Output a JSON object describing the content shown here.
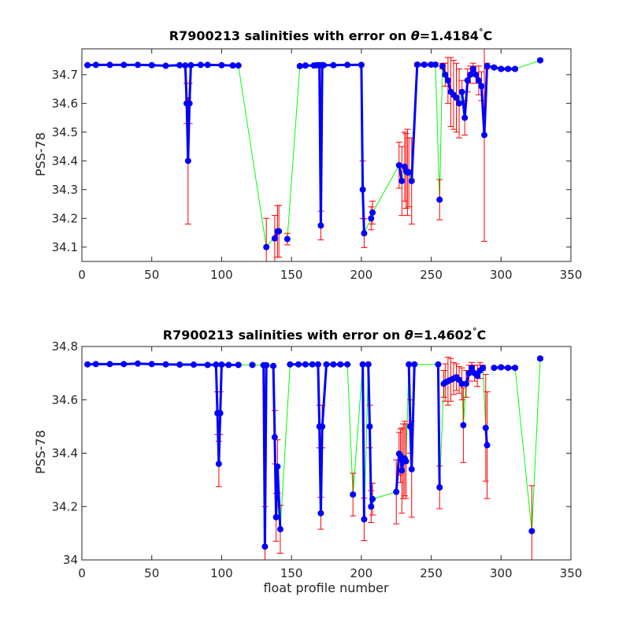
{
  "colors": {
    "series_line": "#0000ff",
    "series_marker": "#0000ff",
    "error_bar": "#ff0000",
    "connector": "#00ff00",
    "axes": "#262626"
  },
  "chart_data": [
    {
      "type": "line",
      "title_prefix": "R7900213 salinities with error on ",
      "title_symbol": "θ",
      "title_value": "=1.4184",
      "title_degree": "°",
      "title_unit": "C",
      "xlabel": "",
      "ylabel": "PSS-78",
      "xlim": [
        0,
        350
      ],
      "ylim": [
        34.05,
        34.79
      ],
      "xticks": [
        0,
        50,
        100,
        150,
        200,
        250,
        300,
        350
      ],
      "yticks": [
        34.1,
        34.2,
        34.3,
        34.4,
        34.5,
        34.6,
        34.7
      ],
      "ytick_labels": [
        "34.1",
        "34.2",
        "34.3",
        "34.4",
        "34.5",
        "34.6",
        "34.7"
      ],
      "grid": false,
      "gaps": [
        [
          112,
          132
        ],
        [
          132,
          141
        ],
        [
          147,
          156
        ],
        [
          202,
          207
        ],
        [
          208,
          227
        ],
        [
          229,
          231
        ],
        [
          234,
          236
        ],
        [
          253,
          256
        ],
        [
          256,
          258
        ],
        [
          264,
          266
        ],
        [
          270,
          272
        ],
        [
          310,
          328
        ]
      ],
      "series": [
        {
          "x": [
            4,
            10,
            20,
            30,
            40,
            50,
            60,
            70,
            74,
            75,
            76,
            77,
            78,
            85,
            90,
            100,
            108,
            112
          ],
          "y": [
            34.733,
            34.734,
            34.734,
            34.734,
            34.734,
            34.733,
            34.731,
            34.733,
            34.732,
            34.6,
            34.4,
            34.6,
            34.733,
            34.734,
            34.734,
            34.733,
            34.732,
            34.732
          ],
          "err": [
            0.003,
            0.003,
            0.003,
            0.003,
            0.003,
            0.003,
            0.003,
            0.003,
            0.003,
            0.07,
            0.22,
            0.07,
            0.003,
            0.003,
            0.003,
            0.003,
            0.003,
            0.003
          ]
        },
        {
          "x": [
            132
          ],
          "y": [
            34.1
          ],
          "err": [
            0.1
          ]
        },
        {
          "x": [
            138,
            140,
            141
          ],
          "y": [
            34.13,
            34.155,
            34.155
          ],
          "err": [
            0.08,
            0.09,
            0.09
          ]
        },
        {
          "x": [
            147
          ],
          "y": [
            34.128
          ],
          "err": [
            0.02
          ]
        },
        {
          "x": [
            156,
            160,
            166,
            168,
            170,
            171,
            172,
            173,
            180,
            190,
            200,
            201,
            202
          ],
          "y": [
            34.73,
            34.732,
            34.732,
            34.733,
            34.733,
            34.175,
            34.733,
            34.733,
            34.733,
            34.734,
            34.734,
            34.3,
            34.148
          ],
          "err": [
            0.004,
            0.003,
            0.003,
            0.003,
            0.003,
            0.05,
            0.003,
            0.003,
            0.003,
            0.003,
            0.003,
            0.1,
            0.05
          ]
        },
        {
          "x": [
            207,
            208
          ],
          "y": [
            34.2,
            34.22
          ],
          "err": [
            0.04,
            0.04
          ]
        },
        {
          "x": [
            227,
            229
          ],
          "y": [
            34.385,
            34.33
          ],
          "err": [
            0.08,
            0.12
          ]
        },
        {
          "x": [
            231,
            232,
            233,
            234
          ],
          "y": [
            34.38,
            34.365,
            34.36,
            34.36
          ],
          "err": [
            0.12,
            0.13,
            0.15,
            0.12
          ]
        },
        {
          "x": [
            236,
            240,
            245,
            250,
            253
          ],
          "y": [
            34.33,
            34.735,
            34.735,
            34.735,
            34.735
          ],
          "err": [
            0.15,
            0.006,
            0.006,
            0.006,
            0.006
          ]
        },
        {
          "x": [
            256
          ],
          "y": [
            34.265
          ],
          "err": [
            0.07
          ]
        },
        {
          "x": [
            258,
            260,
            262,
            264
          ],
          "y": [
            34.73,
            34.7,
            34.68,
            34.64
          ],
          "err": [
            0.01,
            0.04,
            0.08,
            0.12
          ]
        },
        {
          "x": [
            266,
            268,
            270
          ],
          "y": [
            34.63,
            34.62,
            34.6
          ],
          "err": [
            0.12,
            0.12,
            0.12
          ]
        },
        {
          "x": [
            272,
            274,
            276,
            278,
            280,
            282,
            284,
            286,
            288,
            290,
            295,
            300,
            305,
            310
          ],
          "y": [
            34.64,
            34.55,
            34.68,
            34.7,
            34.72,
            34.7,
            34.68,
            34.66,
            34.49,
            34.73,
            34.725,
            34.72,
            34.72,
            34.72
          ],
          "err": [
            0.04,
            0.06,
            0.04,
            0.03,
            0.02,
            0.03,
            0.05,
            0.05,
            0.37,
            0.01,
            0.005,
            0.005,
            0.005,
            0.005
          ]
        },
        {
          "x": [
            328
          ],
          "y": [
            34.75
          ],
          "err": [
            0.005
          ]
        }
      ]
    },
    {
      "type": "line",
      "title_prefix": "R7900213 salinities with error on ",
      "title_symbol": "θ",
      "title_value": "=1.4602",
      "title_degree": "°",
      "title_unit": "C",
      "xlabel": "float profile number",
      "ylabel": "PSS-78",
      "xlim": [
        0,
        350
      ],
      "ylim": [
        34.0,
        34.8
      ],
      "xticks": [
        0,
        50,
        100,
        150,
        200,
        250,
        300,
        350
      ],
      "yticks": [
        34.0,
        34.2,
        34.4,
        34.6,
        34.8
      ],
      "ytick_labels": [
        "34",
        "34.2",
        "34.4",
        "34.6",
        "34.8"
      ],
      "grid": false,
      "gaps": [
        [
          112,
          122
        ],
        [
          122,
          130
        ],
        [
          132,
          137
        ],
        [
          142,
          149
        ],
        [
          190,
          194
        ],
        [
          194,
          201
        ],
        [
          202,
          205
        ],
        [
          208,
          225
        ],
        [
          232,
          234
        ],
        [
          238,
          255
        ],
        [
          256,
          259
        ],
        [
          272,
          273
        ],
        [
          273,
          275
        ],
        [
          287,
          289
        ],
        [
          310,
          322
        ],
        [
          322,
          328
        ]
      ],
      "series": [
        {
          "x": [
            4,
            10,
            20,
            30,
            40,
            50,
            60,
            70,
            80,
            90,
            96,
            97,
            98,
            99,
            100,
            105,
            112
          ],
          "y": [
            34.733,
            34.734,
            34.734,
            34.734,
            34.736,
            34.734,
            34.733,
            34.732,
            34.732,
            34.731,
            34.732,
            34.55,
            34.36,
            34.55,
            34.732,
            34.731,
            34.731
          ],
          "err": [
            0.003,
            0.003,
            0.003,
            0.003,
            0.003,
            0.003,
            0.003,
            0.003,
            0.003,
            0.003,
            0.003,
            0.08,
            0.085,
            0.08,
            0.003,
            0.003,
            0.003
          ]
        },
        {
          "x": [
            122
          ],
          "y": [
            34.731
          ],
          "err": [
            0.003
          ]
        },
        {
          "x": [
            130,
            131,
            132
          ],
          "y": [
            34.73,
            34.05,
            34.73
          ],
          "err": [
            0.003,
            0.15,
            0.003
          ]
        },
        {
          "x": [
            137,
            138,
            139,
            140,
            142
          ],
          "y": [
            34.727,
            34.46,
            34.16,
            34.35,
            34.115
          ],
          "err": [
            0.003,
            0.1,
            0.09,
            0.1,
            0.09
          ]
        },
        {
          "x": [
            149,
            155,
            160,
            165,
            169,
            170,
            171,
            172,
            175,
            180,
            185,
            190
          ],
          "y": [
            34.733,
            34.733,
            34.733,
            34.733,
            34.733,
            34.5,
            34.175,
            34.5,
            34.733,
            34.733,
            34.733,
            34.733
          ],
          "err": [
            0.003,
            0.003,
            0.003,
            0.003,
            0.003,
            0.08,
            0.06,
            0.08,
            0.003,
            0.003,
            0.003,
            0.003
          ]
        },
        {
          "x": [
            194
          ],
          "y": [
            34.245
          ],
          "err": [
            0.08
          ]
        },
        {
          "x": [
            201,
            202
          ],
          "y": [
            34.733,
            34.152
          ],
          "err": [
            0.003,
            0.08
          ]
        },
        {
          "x": [
            205,
            206,
            207,
            208
          ],
          "y": [
            34.733,
            34.5,
            34.2,
            34.228
          ],
          "err": [
            0.003,
            0.08,
            0.06,
            0.06
          ]
        },
        {
          "x": [
            225,
            227,
            228,
            229,
            230,
            231,
            232
          ],
          "y": [
            34.255,
            34.398,
            34.39,
            34.335,
            34.37,
            34.38,
            34.37
          ],
          "err": [
            0.12,
            0.08,
            0.1,
            0.16,
            0.14,
            0.14,
            0.14
          ]
        },
        {
          "x": [
            234,
            235,
            236,
            238
          ],
          "y": [
            34.733,
            34.5,
            34.34,
            34.733
          ],
          "err": [
            0.003,
            0.1,
            0.18,
            0.003
          ]
        },
        {
          "x": [
            255,
            256
          ],
          "y": [
            34.733,
            34.272
          ],
          "err": [
            0.003,
            0.08
          ]
        },
        {
          "x": [
            259,
            260,
            262,
            264,
            266,
            268,
            270,
            272
          ],
          "y": [
            34.66,
            34.665,
            34.67,
            34.675,
            34.68,
            34.685,
            34.675,
            34.66
          ],
          "err": [
            0.05,
            0.07,
            0.09,
            0.08,
            0.06,
            0.05,
            0.05,
            0.06
          ]
        },
        {
          "x": [
            273
          ],
          "y": [
            34.505
          ],
          "err": [
            0.14
          ]
        },
        {
          "x": [
            275,
            277,
            279,
            281,
            283,
            285,
            287
          ],
          "y": [
            34.66,
            34.7,
            34.72,
            34.7,
            34.69,
            34.71,
            34.72
          ],
          "err": [
            0.05,
            0.03,
            0.02,
            0.03,
            0.04,
            0.03,
            0.01
          ]
        },
        {
          "x": [
            289,
            290
          ],
          "y": [
            34.495,
            34.43
          ],
          "err": [
            0.2,
            0.2
          ]
        },
        {
          "x": [
            295,
            300,
            305,
            310
          ],
          "y": [
            34.72,
            34.722,
            34.72,
            34.72
          ],
          "err": [
            0.005,
            0.005,
            0.005,
            0.005
          ]
        },
        {
          "x": [
            322
          ],
          "y": [
            34.108
          ],
          "err": [
            0.17
          ]
        },
        {
          "x": [
            328
          ],
          "y": [
            34.755
          ],
          "err": [
            0.005
          ]
        }
      ]
    }
  ]
}
